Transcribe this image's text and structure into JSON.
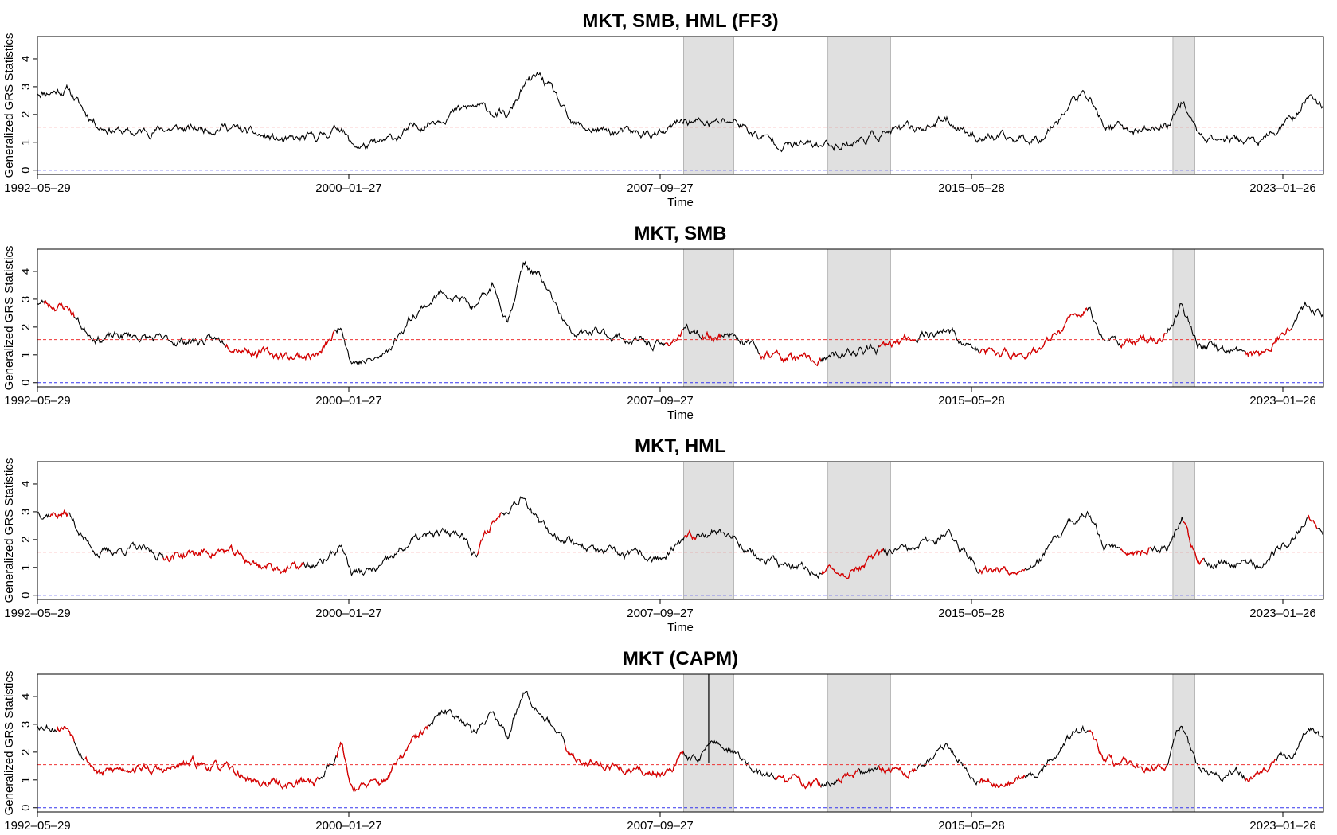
{
  "colors": {
    "series_line": "#000000",
    "highlight_line": "#dd0000",
    "threshold_line": "#ee3333",
    "baseline_line": "#3333ee",
    "shade_fill": "#e0e0e0",
    "shade_edge": "#aaaaaa"
  },
  "shared": {
    "xlabel": "Time",
    "ylabel": "Generalized GRS Statistics",
    "x_ticks": [
      {
        "index": 0,
        "label": "1992–05–29"
      },
      {
        "index": 1,
        "label": "2000–01–27"
      },
      {
        "index": 2,
        "label": "2007–09–27"
      },
      {
        "index": 3,
        "label": "2015–05–28"
      },
      {
        "index": 4,
        "label": "2023–01–26"
      }
    ],
    "y_ticks": [
      0,
      1,
      2,
      3,
      4
    ],
    "ylim": [
      -0.15,
      4.8
    ],
    "xlim": [
      0,
      4.1
    ],
    "threshold": 1.55,
    "baseline": 0,
    "shaded_periods": [
      [
        2.06,
        2.22
      ],
      [
        2.52,
        2.72
      ],
      [
        3.62,
        3.69
      ]
    ]
  },
  "chart_data": [
    {
      "type": "line",
      "title": "MKT, SMB, HML (FF3)",
      "seed": 11,
      "series": [
        {
          "x": [
            0,
            0.1,
            0.15,
            0.2,
            0.3,
            0.4,
            0.5,
            0.6,
            0.7,
            0.8,
            0.9,
            0.97,
            1.0,
            1.05,
            1.1,
            1.2,
            1.3,
            1.4,
            1.5,
            1.55,
            1.6,
            1.65,
            1.7,
            1.8,
            1.9,
            2.0,
            2.06,
            2.15,
            2.22,
            2.3,
            2.4,
            2.5,
            2.6,
            2.7,
            2.8,
            2.9,
            3.0,
            3.1,
            3.2,
            3.3,
            3.35,
            3.4,
            3.5,
            3.6,
            3.65,
            3.7,
            3.8,
            3.9,
            4.0,
            4.05,
            4.1
          ],
          "y": [
            2.8,
            2.9,
            2.1,
            1.6,
            1.3,
            1.5,
            1.45,
            1.6,
            1.25,
            1.0,
            1.2,
            1.6,
            0.9,
            0.85,
            0.95,
            1.5,
            2.0,
            2.3,
            1.9,
            3.0,
            3.4,
            2.7,
            1.6,
            1.4,
            1.3,
            1.3,
            1.8,
            1.65,
            1.8,
            1.2,
            0.9,
            0.9,
            1.0,
            1.35,
            1.5,
            1.8,
            1.2,
            1.1,
            1.2,
            2.5,
            2.7,
            1.6,
            1.4,
            1.6,
            2.5,
            1.3,
            1.1,
            1.0,
            1.8,
            2.7,
            2.3
          ]
        }
      ],
      "highlight": []
    },
    {
      "type": "line",
      "title": "MKT, SMB",
      "seed": 23,
      "series": [
        {
          "x": [
            0,
            0.1,
            0.15,
            0.2,
            0.3,
            0.4,
            0.5,
            0.6,
            0.7,
            0.8,
            0.9,
            0.97,
            1.0,
            1.05,
            1.1,
            1.2,
            1.3,
            1.35,
            1.4,
            1.45,
            1.5,
            1.55,
            1.6,
            1.65,
            1.7,
            1.8,
            1.9,
            2.0,
            2.06,
            2.15,
            2.22,
            2.3,
            2.4,
            2.5,
            2.6,
            2.7,
            2.8,
            2.9,
            3.0,
            3.1,
            3.2,
            3.3,
            3.35,
            3.4,
            3.5,
            3.6,
            3.65,
            3.7,
            3.8,
            3.9,
            4.0,
            4.05,
            4.1
          ],
          "y": [
            2.9,
            2.7,
            1.9,
            1.6,
            1.7,
            1.5,
            1.5,
            1.5,
            1.1,
            0.95,
            1.0,
            2.1,
            0.8,
            0.75,
            0.9,
            2.5,
            3.3,
            3.0,
            2.6,
            3.5,
            2.3,
            4.3,
            3.8,
            2.8,
            1.7,
            1.8,
            1.5,
            1.3,
            1.85,
            1.65,
            1.8,
            1.1,
            0.85,
            0.75,
            1.1,
            1.2,
            1.7,
            1.9,
            1.1,
            1.0,
            1.2,
            2.3,
            2.7,
            1.6,
            1.4,
            1.7,
            2.8,
            1.4,
            1.1,
            1.0,
            2.2,
            2.9,
            2.4
          ]
        }
      ],
      "highlight": [
        [
          0.02,
          0.12
        ],
        [
          0.6,
          0.95
        ],
        [
          2.0,
          2.06
        ],
        [
          2.12,
          2.18
        ],
        [
          2.3,
          2.5
        ],
        [
          2.68,
          2.8
        ],
        [
          3.0,
          3.35
        ],
        [
          3.45,
          3.6
        ],
        [
          3.85,
          4.0
        ]
      ]
    },
    {
      "type": "line",
      "title": "MKT, HML",
      "seed": 37,
      "series": [
        {
          "x": [
            0,
            0.1,
            0.15,
            0.2,
            0.3,
            0.4,
            0.5,
            0.6,
            0.7,
            0.8,
            0.9,
            0.97,
            1.0,
            1.05,
            1.1,
            1.2,
            1.3,
            1.35,
            1.4,
            1.45,
            1.5,
            1.55,
            1.6,
            1.65,
            1.7,
            1.8,
            1.9,
            2.0,
            2.06,
            2.15,
            2.22,
            2.3,
            2.4,
            2.5,
            2.6,
            2.7,
            2.8,
            2.9,
            3.0,
            3.1,
            3.2,
            3.3,
            3.35,
            3.4,
            3.5,
            3.6,
            3.65,
            3.7,
            3.8,
            3.9,
            4.0,
            4.05,
            4.1
          ],
          "y": [
            3.0,
            2.9,
            2.0,
            1.5,
            1.7,
            1.4,
            1.5,
            1.6,
            1.1,
            0.95,
            1.1,
            1.8,
            0.85,
            0.8,
            1.0,
            2.0,
            2.2,
            2.3,
            1.5,
            2.6,
            3.2,
            3.7,
            2.5,
            2.2,
            2.0,
            1.5,
            1.4,
            1.3,
            1.9,
            2.4,
            2.1,
            1.3,
            1.0,
            0.8,
            0.9,
            1.5,
            1.6,
            2.3,
            1.0,
            0.9,
            1.3,
            2.7,
            2.9,
            1.8,
            1.6,
            1.7,
            2.8,
            1.1,
            1.2,
            1.1,
            2.0,
            2.8,
            2.4
          ]
        }
      ],
      "highlight": [
        [
          0.04,
          0.1
        ],
        [
          0.4,
          0.85
        ],
        [
          1.4,
          1.48
        ],
        [
          2.06,
          2.1
        ],
        [
          2.5,
          2.7
        ],
        [
          3.0,
          3.15
        ],
        [
          3.45,
          3.55
        ],
        [
          3.65,
          3.72
        ],
        [
          4.05,
          4.08
        ]
      ]
    },
    {
      "type": "line",
      "title": "MKT (CAPM)",
      "seed": 53,
      "series": [
        {
          "x": [
            0,
            0.1,
            0.15,
            0.2,
            0.3,
            0.4,
            0.5,
            0.6,
            0.7,
            0.8,
            0.9,
            0.97,
            1.0,
            1.05,
            1.1,
            1.2,
            1.3,
            1.35,
            1.4,
            1.45,
            1.5,
            1.55,
            1.6,
            1.65,
            1.7,
            1.8,
            1.9,
            2.0,
            2.06,
            2.1,
            2.15,
            2.22,
            2.3,
            2.4,
            2.5,
            2.6,
            2.7,
            2.8,
            2.9,
            3.0,
            3.1,
            3.2,
            3.3,
            3.35,
            3.4,
            3.5,
            3.6,
            3.65,
            3.7,
            3.8,
            3.9,
            4.0,
            4.05,
            4.1
          ],
          "y": [
            3.0,
            2.9,
            1.9,
            1.2,
            1.5,
            1.3,
            1.6,
            1.4,
            0.9,
            0.85,
            1.0,
            2.3,
            0.8,
            0.75,
            0.9,
            2.4,
            3.4,
            3.3,
            2.6,
            3.6,
            2.5,
            4.3,
            3.6,
            2.9,
            1.8,
            1.6,
            1.3,
            1.3,
            1.9,
            1.7,
            2.4,
            2.0,
            1.2,
            1.0,
            0.8,
            1.1,
            1.4,
            1.3,
            2.3,
            1.0,
            0.9,
            1.3,
            2.7,
            2.8,
            1.7,
            1.5,
            1.6,
            3.0,
            1.3,
            1.2,
            1.1,
            2.0,
            2.9,
            2.4
          ]
        }
      ],
      "spike": {
        "x": 2.14,
        "y_from": 1.6,
        "y_to": 4.8
      },
      "highlight": [
        [
          0.06,
          0.12
        ],
        [
          0.15,
          0.55
        ],
        [
          0.55,
          0.9
        ],
        [
          0.95,
          1.25
        ],
        [
          1.68,
          2.06
        ],
        [
          2.35,
          2.5
        ],
        [
          2.55,
          2.62
        ],
        [
          2.68,
          2.8
        ],
        [
          3.0,
          3.15
        ],
        [
          3.35,
          3.45
        ],
        [
          3.45,
          3.6
        ],
        [
          3.85,
          3.95
        ]
      ]
    }
  ]
}
